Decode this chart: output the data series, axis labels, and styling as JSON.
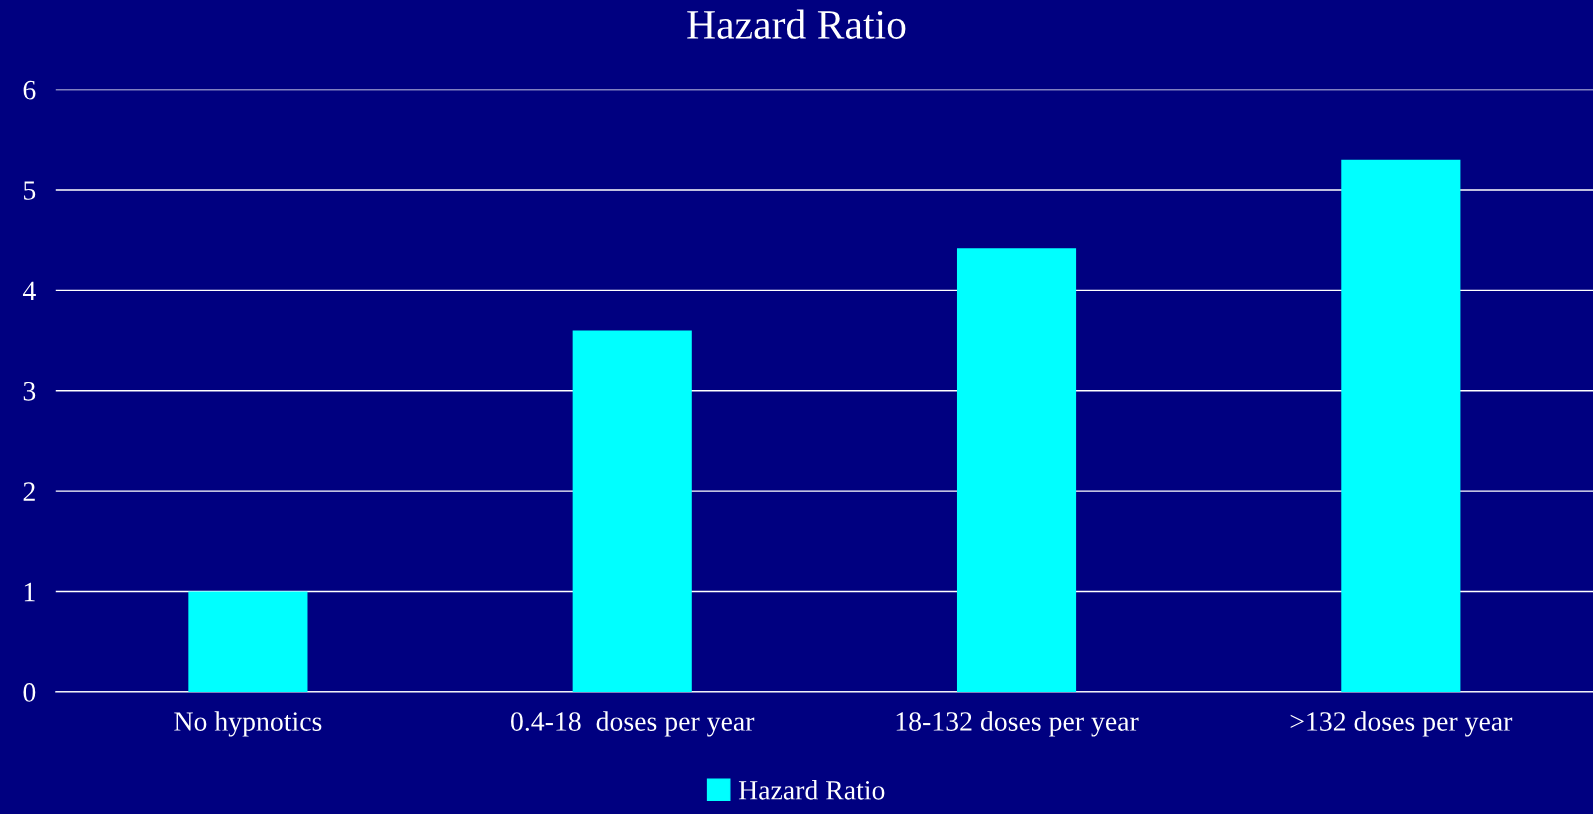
{
  "chart_data": {
    "type": "bar",
    "title": "Hazard Ratio",
    "categories": [
      "No hypnotics",
      "0.4-18  doses per year",
      "18-132 doses per year",
      ">132 doses per year"
    ],
    "series": [
      {
        "name": "Hazard Ratio",
        "color": "#00ffff",
        "values": [
          1.0,
          3.6,
          4.42,
          5.3
        ]
      }
    ],
    "ylim": [
      0,
      6
    ],
    "yticks": [
      0,
      1,
      2,
      3,
      4,
      5,
      6
    ],
    "grid": "y",
    "legend": "bottom"
  }
}
